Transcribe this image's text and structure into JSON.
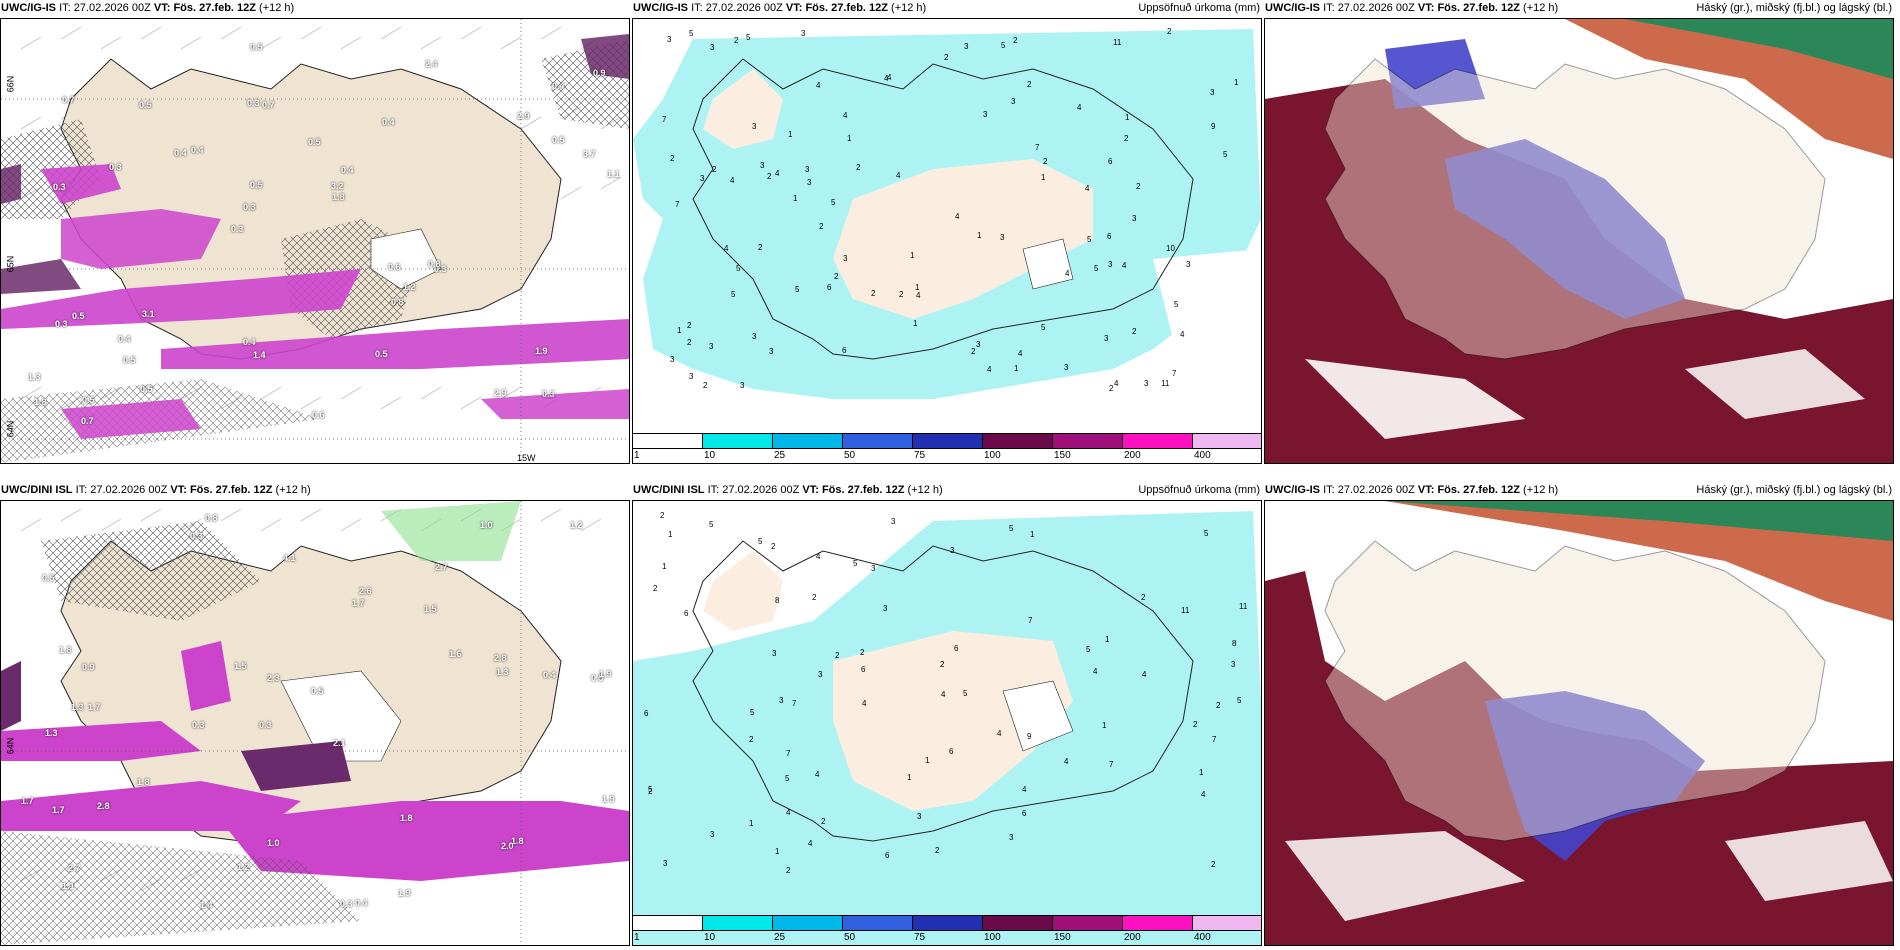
{
  "panels": [
    {
      "id": "top-left",
      "model": "UWC/IG-IS",
      "it_label": "IT:",
      "it_value": "27.02.2026 00Z",
      "vt_label": "VT:",
      "vt_value": "Fös. 27.feb. 12Z",
      "lead": "(+12 h)",
      "right_title": "",
      "values": [
        "0.3",
        "0.3",
        "0.4",
        "0.3",
        "0.4",
        "0.5",
        "0.3",
        "0.5",
        "0.5",
        "0.4",
        "1.3",
        "0.5",
        "0.7",
        "0.4",
        "0.3",
        "0.7",
        "0.5",
        "1.1",
        "0.6",
        "0.5",
        "0.3",
        "0.4",
        "0.5",
        "0.5",
        "2.4",
        "3.1",
        "2.9",
        "1.9",
        "0.8",
        "0.6",
        "0.4",
        "0.3",
        "0.8",
        "0.5",
        "3.7",
        "3.2",
        "1.8",
        "1.4",
        "1.8",
        "0.3",
        "2.9",
        "0.9",
        "1.2",
        "0.5",
        "0.4",
        "0.7"
      ],
      "lat_labels": [
        "66N",
        "65N",
        "64N"
      ],
      "lon_label": "15W"
    },
    {
      "id": "top-mid",
      "model": "UWC/IG-IS",
      "it_label": "IT:",
      "it_value": "27.02.2026 00Z",
      "vt_label": "VT:",
      "vt_value": "Fös. 27.feb. 12Z",
      "lead": "(+12 h)",
      "right_title": "Uppsöfnuð úrkoma (mm)",
      "colorbar": [
        "1",
        "10",
        "25",
        "50",
        "75",
        "100",
        "150",
        "200",
        "400"
      ],
      "numbers": [
        "1",
        "2",
        "2",
        "6",
        "11",
        "4",
        "2",
        "2",
        "6",
        "4",
        "2",
        "3",
        "3",
        "4",
        "5",
        "5",
        "4",
        "5",
        "3",
        "2",
        "3",
        "4",
        "4",
        "5",
        "2",
        "1",
        "2",
        "2",
        "1",
        "1",
        "2",
        "2",
        "3",
        "5",
        "4",
        "2",
        "2",
        "5",
        "2",
        "6",
        "7",
        "7",
        "10",
        "3",
        "4",
        "2",
        "1",
        "1",
        "3",
        "2",
        "4",
        "6",
        "3",
        "11",
        "9",
        "7",
        "3",
        "3",
        "5",
        "3",
        "5",
        "4",
        "7",
        "5",
        "3",
        "3",
        "2",
        "3",
        "4",
        "3",
        "4",
        "3",
        "1",
        "2",
        "4",
        "3",
        "3",
        "4",
        "1",
        "2",
        "3",
        "3",
        "5",
        "3",
        "5",
        "3",
        "2",
        "1",
        "1",
        "3",
        "2",
        "1",
        "1",
        "2",
        "4",
        "3",
        "3",
        "3",
        "3",
        "5",
        "4",
        "4",
        "2",
        "4"
      ]
    },
    {
      "id": "top-right",
      "model": "UWC/IG-IS",
      "it_label": "IT:",
      "it_value": "27.02.2026 00Z",
      "vt_label": "VT:",
      "vt_value": "Fös. 27.feb. 12Z",
      "lead": "(+12 h)",
      "right_title": "Háský (gr.), miðský (fj.bl.) og lágský (bl.)"
    },
    {
      "id": "bottom-left",
      "model": "UWC/DINI ISL",
      "it_label": "IT:",
      "it_value": "27.02.2026 00Z",
      "vt_label": "VT:",
      "vt_value": "Fös. 27.feb. 12Z",
      "lead": "(+12 h)",
      "right_title": "",
      "values": [
        "0.8",
        "2.7",
        "0.5",
        "0.3",
        "2.1",
        "1.7",
        "0.5",
        "1.5",
        "1.3",
        "1.7",
        "0.5",
        "1.1",
        "0.3",
        "0.3",
        "0.3",
        "0.4",
        "1.0",
        "1.0",
        "1.6",
        "1.8",
        "0.9",
        "1.3",
        "1.9",
        "0.4",
        "1.7",
        "1.8",
        "2.3",
        "1.3",
        "1.8",
        "1.7",
        "2.0",
        "2.6",
        "2.8",
        "1.5",
        "1.8",
        "1.9",
        "2.8",
        "1.2",
        "1.2",
        "4.1",
        "2.7",
        "1.4",
        "1.9"
      ],
      "lat_labels": [
        "64N"
      ]
    },
    {
      "id": "bottom-mid",
      "model": "UWC/DINI ISL",
      "it_label": "IT:",
      "it_value": "27.02.2026 00Z",
      "vt_label": "VT:",
      "vt_value": "Fös. 27.feb. 12Z",
      "lead": "(+12 h)",
      "right_title": "Uppsöfnuð úrkoma (mm)",
      "colorbar": [
        "1",
        "10",
        "25",
        "50",
        "75",
        "100",
        "150",
        "200",
        "400"
      ],
      "numbers": [
        "1",
        "2",
        "6",
        "5",
        "11",
        "4",
        "3",
        "4",
        "3",
        "4",
        "5",
        "5",
        "2",
        "2",
        "1",
        "2",
        "1",
        "1",
        "2",
        "2",
        "8",
        "3",
        "4",
        "3",
        "5",
        "6",
        "7",
        "7",
        "6",
        "5",
        "4",
        "4",
        "11",
        "7",
        "4",
        "3",
        "5",
        "6",
        "6",
        "7",
        "8",
        "2",
        "9",
        "3",
        "5",
        "6",
        "4",
        "4",
        "3",
        "6",
        "5",
        "7",
        "1",
        "2",
        "1",
        "1",
        "2",
        "2",
        "2",
        "3",
        "1",
        "2",
        "1",
        "1",
        "5",
        "3",
        "2",
        "3",
        "4",
        "2",
        "5",
        "3",
        "5",
        "4",
        "4",
        "2",
        "3",
        "2"
      ]
    },
    {
      "id": "bottom-right",
      "model": "UWC/IG-IS",
      "it_label": "IT:",
      "it_value": "27.02.2026 00Z",
      "vt_label": "VT:",
      "vt_value": "Fös. 27.feb. 12Z",
      "lead": "(+12 h)",
      "right_title": "Háský (gr.), miðský (fj.bl.) og lágský (bl.)"
    }
  ],
  "colors": {
    "land": "#efe3d1",
    "precip_light": "#aef3f3",
    "snow_magenta": "#cc44cc",
    "snow_dark": "#6b2a6b",
    "cloud_low": "#7a1530",
    "cloud_mid": "#4444cc",
    "cloud_high": "#0fa06a",
    "colorbar": [
      "#ffffff",
      "#00e8e8",
      "#00b8e8",
      "#3060e0",
      "#2030b0",
      "#6a0a4a",
      "#a0107a",
      "#ff10c0",
      "#f0b8f0"
    ]
  }
}
